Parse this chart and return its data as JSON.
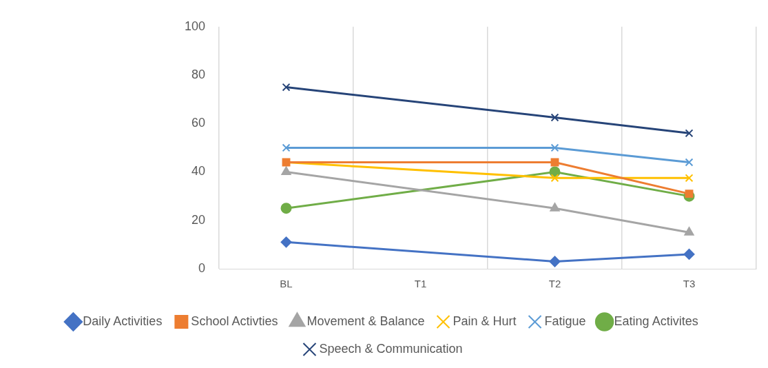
{
  "chart_data": {
    "type": "line",
    "categories": [
      "BL",
      "T1",
      "T2",
      "T3"
    ],
    "ylim": [
      0,
      100
    ],
    "yticks": [
      0,
      20,
      40,
      60,
      80,
      100
    ],
    "grid": "x",
    "legend": "bottom",
    "line_style": "solid",
    "series": [
      {
        "name": "Daily Activities",
        "color": "#4472c4",
        "marker": "diamond",
        "values": [
          11,
          null,
          3,
          6
        ]
      },
      {
        "name": "School Activties",
        "color": "#ed7d31",
        "marker": "square",
        "values": [
          44,
          null,
          44,
          31
        ]
      },
      {
        "name": "Movement & Balance",
        "color": "#a5a5a5",
        "marker": "triangle",
        "values": [
          40,
          null,
          25,
          15
        ]
      },
      {
        "name": "Pain & Hurt",
        "color": "#ffc000",
        "marker": "cross",
        "values": [
          44,
          null,
          37.5,
          37.5
        ]
      },
      {
        "name": "Fatigue",
        "color": "#5b9bd5",
        "marker": "cross",
        "values": [
          50,
          null,
          50,
          44
        ]
      },
      {
        "name": "Eating Activites",
        "color": "#70ad47",
        "marker": "circle",
        "values": [
          25,
          null,
          40,
          30
        ]
      },
      {
        "name": "Speech & Communication",
        "color": "#264478",
        "marker": "cross",
        "values": [
          75,
          null,
          62.5,
          56
        ]
      }
    ]
  }
}
